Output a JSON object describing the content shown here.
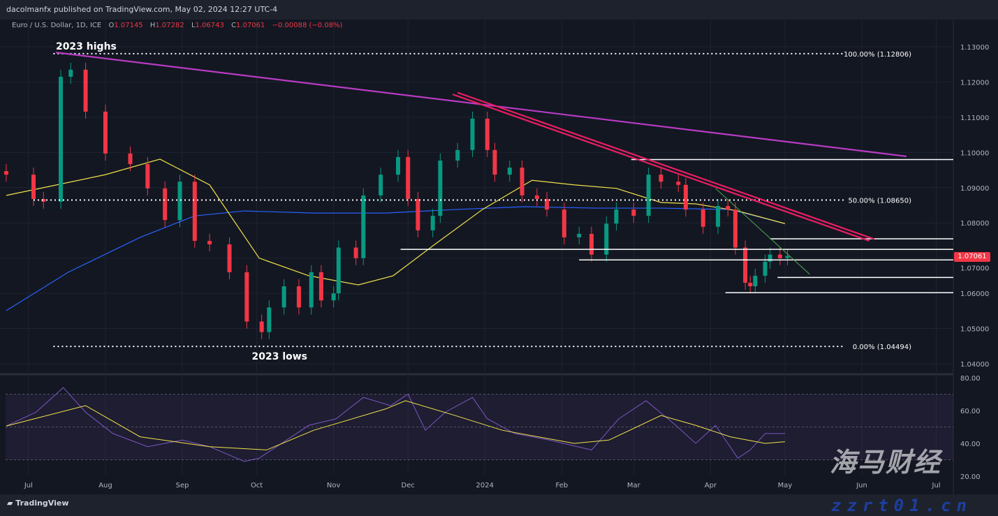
{
  "header": {
    "published": "dacolmanfx published on TradingView.com, May 02, 2024 12:27 UTC-4"
  },
  "legend": {
    "symbol": "Euro / U.S. Dollar, 1D, ICE",
    "o_label": "O",
    "o": "1.07145",
    "h_label": "H",
    "h": "1.07282",
    "l_label": "L",
    "l": "1.06743",
    "c_label": "C",
    "c": "1.07061",
    "change": "−0.00088 (−0.08%)"
  },
  "last_price": "1.07061",
  "footer": {
    "logo": "TradingView"
  },
  "watermark": {
    "line1": "海马财经",
    "line2": "zzrt01.cn"
  },
  "colors": {
    "up": "#089981",
    "down": "#f23645",
    "ma50": "#f2e24a",
    "ma200": "#2962ff",
    "long_trend": "#b93bc5",
    "pink_channel": "#e91e63",
    "green_trend": "#4caf50",
    "rsi": "#7e57c2",
    "rsi_ma": "#f2e24a"
  },
  "chart_data": [
    {
      "type": "candlestick",
      "title": "Euro / U.S. Dollar, 1D, ICE",
      "ylim": [
        1.038,
        1.134
      ],
      "y_ticks": [
        "1.13000",
        "1.12000",
        "1.11000",
        "1.10000",
        "1.09000",
        "1.08000",
        "1.07000",
        "1.06000",
        "1.05000",
        "1.04000"
      ],
      "x_ticks": [
        [
          "2023-07-01",
          "Jul"
        ],
        [
          "2023-08-01",
          "Aug"
        ],
        [
          "2023-09-01",
          "Sep"
        ],
        [
          "2023-10-01",
          "Oct"
        ],
        [
          "2023-11-01",
          "Nov"
        ],
        [
          "2023-12-01",
          "Dec"
        ],
        [
          "2024-01-01",
          "2024"
        ],
        [
          "2024-02-01",
          "Feb"
        ],
        [
          "2024-03-01",
          "Mar"
        ],
        [
          "2024-04-01",
          "Apr"
        ],
        [
          "2024-05-01",
          "May"
        ],
        [
          "2024-06-01",
          "Jun"
        ],
        [
          "2024-07-01",
          "Jul"
        ]
      ],
      "closes": [
        [
          "2023-06-22",
          1.0937
        ],
        [
          "2023-07-03",
          1.0868
        ],
        [
          "2023-07-07",
          1.086
        ],
        [
          "2023-07-14",
          1.1215
        ],
        [
          "2023-07-18",
          1.1235
        ],
        [
          "2023-07-24",
          1.1116
        ],
        [
          "2023-08-01",
          1.0997
        ],
        [
          "2023-08-11",
          1.0967
        ],
        [
          "2023-08-18",
          1.0898
        ],
        [
          "2023-08-25",
          1.0808
        ],
        [
          "2023-08-31",
          1.0917
        ],
        [
          "2023-09-06",
          1.0749
        ],
        [
          "2023-09-12",
          1.0739
        ],
        [
          "2023-09-20",
          1.066
        ],
        [
          "2023-09-27",
          1.052
        ],
        [
          "2023-10-03",
          1.049
        ],
        [
          "2023-10-06",
          1.056
        ],
        [
          "2023-10-12",
          1.062
        ],
        [
          "2023-10-18",
          1.056
        ],
        [
          "2023-10-23",
          1.066
        ],
        [
          "2023-10-27",
          1.058
        ],
        [
          "2023-11-01",
          1.06
        ],
        [
          "2023-11-03",
          1.073
        ],
        [
          "2023-11-10",
          1.07
        ],
        [
          "2023-11-13",
          1.0878
        ],
        [
          "2023-11-20",
          1.0937
        ],
        [
          "2023-11-27",
          1.0987
        ],
        [
          "2023-12-01",
          1.0868
        ],
        [
          "2023-12-05",
          1.0779
        ],
        [
          "2023-12-11",
          1.082
        ],
        [
          "2023-12-14",
          1.0977
        ],
        [
          "2023-12-21",
          1.1007
        ],
        [
          "2023-12-27",
          1.1096
        ],
        [
          "2024-01-02",
          1.1007
        ],
        [
          "2024-01-05",
          1.0937
        ],
        [
          "2024-01-11",
          1.0957
        ],
        [
          "2024-01-16",
          1.0878
        ],
        [
          "2024-01-22",
          1.0868
        ],
        [
          "2024-01-26",
          1.0838
        ],
        [
          "2024-02-02",
          1.0759
        ],
        [
          "2024-02-08",
          1.0769
        ],
        [
          "2024-02-13",
          1.071
        ],
        [
          "2024-02-19",
          1.0798
        ],
        [
          "2024-02-23",
          1.0838
        ],
        [
          "2024-03-01",
          1.082
        ],
        [
          "2024-03-07",
          1.0937
        ],
        [
          "2024-03-12",
          1.0917
        ],
        [
          "2024-03-19",
          1.0908
        ],
        [
          "2024-03-22",
          1.0838
        ],
        [
          "2024-03-29",
          1.0789
        ],
        [
          "2024-04-04",
          1.0848
        ],
        [
          "2024-04-08",
          1.0838
        ],
        [
          "2024-04-11",
          1.073
        ],
        [
          "2024-04-15",
          1.063
        ],
        [
          "2024-04-17",
          1.062
        ],
        [
          "2024-04-19",
          1.065
        ],
        [
          "2024-04-23",
          1.069
        ],
        [
          "2024-04-25",
          1.071
        ],
        [
          "2024-04-29",
          1.07
        ],
        [
          "2024-05-02",
          1.07061
        ]
      ],
      "ma50": [
        [
          "2023-06-22",
          1.0878
        ],
        [
          "2023-08-01",
          1.0937
        ],
        [
          "2023-08-23",
          1.0981
        ],
        [
          "2023-09-12",
          1.0908
        ],
        [
          "2023-10-02",
          1.07
        ],
        [
          "2023-10-22",
          1.065
        ],
        [
          "2023-11-11",
          1.0624
        ],
        [
          "2023-11-25",
          1.065
        ],
        [
          "2023-12-12",
          1.074
        ],
        [
          "2023-12-31",
          1.0838
        ],
        [
          "2024-01-20",
          1.0921
        ],
        [
          "2024-02-06",
          1.0908
        ],
        [
          "2024-02-23",
          1.0898
        ],
        [
          "2024-03-12",
          1.0858
        ],
        [
          "2024-03-26",
          1.0854
        ],
        [
          "2024-04-12",
          1.0834
        ],
        [
          "2024-05-01",
          1.0798
        ]
      ],
      "ma200": [
        [
          "2023-06-22",
          1.0551
        ],
        [
          "2023-07-17",
          1.066
        ],
        [
          "2023-08-15",
          1.0759
        ],
        [
          "2023-09-06",
          1.082
        ],
        [
          "2023-09-26",
          1.0834
        ],
        [
          "2023-10-24",
          1.0828
        ],
        [
          "2023-11-22",
          1.0828
        ],
        [
          "2023-12-20",
          1.0838
        ],
        [
          "2024-01-17",
          1.0846
        ],
        [
          "2024-02-15",
          1.0842
        ],
        [
          "2024-03-12",
          1.0842
        ],
        [
          "2024-04-09",
          1.0838
        ],
        [
          "2024-05-01",
          1.0798
        ]
      ],
      "fib_levels": [
        {
          "label": "100.00% (1.12806)",
          "price": 1.12806,
          "from": "2023-07-11"
        },
        {
          "label": "50.00% (1.08650)",
          "price": 1.0865,
          "from": "2023-07-03"
        },
        {
          "label": "0.00% (1.04494)",
          "price": 1.04494,
          "from": "2023-07-11"
        }
      ],
      "horizontal_levels": [
        {
          "price": 1.098,
          "from": "2024-02-29"
        },
        {
          "price": 1.0755,
          "from": "2024-04-25"
        },
        {
          "price": 1.0725,
          "from": "2023-11-28"
        },
        {
          "price": 1.0695,
          "from": "2024-02-08"
        },
        {
          "price": 1.0645,
          "from": "2024-04-28"
        },
        {
          "price": 1.0602,
          "from": "2024-04-07"
        }
      ],
      "trendlines": [
        {
          "kind": "long_trend",
          "from": [
            "2023-07-12",
            1.1284
          ],
          "to": [
            "2024-06-19",
            1.0989
          ]
        },
        {
          "kind": "pink_channel",
          "from": [
            "2023-12-19",
            1.1165
          ],
          "to": [
            "2024-06-04",
            1.0749
          ]
        },
        {
          "kind": "pink_channel",
          "from": [
            "2023-12-21",
            1.117
          ],
          "to": [
            "2024-06-06",
            1.0754
          ]
        },
        {
          "kind": "green_trend",
          "from": [
            "2024-04-03",
            1.0898
          ],
          "to": [
            "2024-05-11",
            1.0654
          ]
        }
      ],
      "annotations": [
        {
          "text": "2023 highs",
          "date": "2023-07-12",
          "price": 1.13
        },
        {
          "text": "2023 lows",
          "date": "2023-09-29",
          "price": 1.042
        }
      ]
    },
    {
      "type": "line",
      "title": "RSI",
      "ylim": [
        16,
        82
      ],
      "y_ticks": [
        "80.00",
        "60.00",
        "40.00",
        "20.00"
      ],
      "bands": [
        70,
        50,
        30
      ],
      "rsi": [
        [
          "2023-06-22",
          50.6
        ],
        [
          "2023-07-04",
          59
        ],
        [
          "2023-07-15",
          74
        ],
        [
          "2023-07-24",
          59
        ],
        [
          "2023-08-04",
          46
        ],
        [
          "2023-08-18",
          38
        ],
        [
          "2023-09-01",
          42
        ],
        [
          "2023-09-12",
          38
        ],
        [
          "2023-09-26",
          29
        ],
        [
          "2023-10-02",
          31
        ],
        [
          "2023-10-13",
          42
        ],
        [
          "2023-10-22",
          51
        ],
        [
          "2023-11-02",
          55
        ],
        [
          "2023-11-13",
          68
        ],
        [
          "2023-11-24",
          63
        ],
        [
          "2023-12-01",
          70
        ],
        [
          "2023-12-08",
          48
        ],
        [
          "2023-12-16",
          59
        ],
        [
          "2023-12-27",
          68
        ],
        [
          "2024-01-02",
          55
        ],
        [
          "2024-01-13",
          46
        ],
        [
          "2024-01-27",
          42
        ],
        [
          "2024-02-13",
          36
        ],
        [
          "2024-02-24",
          55
        ],
        [
          "2024-03-06",
          66
        ],
        [
          "2024-03-18",
          51
        ],
        [
          "2024-03-26",
          40
        ],
        [
          "2024-04-03",
          51
        ],
        [
          "2024-04-12",
          31
        ],
        [
          "2024-04-17",
          36
        ],
        [
          "2024-04-23",
          46
        ],
        [
          "2024-05-01",
          46
        ]
      ],
      "rsi_ma": [
        [
          "2023-06-22",
          50.6
        ],
        [
          "2023-07-24",
          63
        ],
        [
          "2023-08-15",
          44
        ],
        [
          "2023-09-12",
          38
        ],
        [
          "2023-10-05",
          36
        ],
        [
          "2023-10-24",
          48
        ],
        [
          "2023-11-22",
          61
        ],
        [
          "2023-11-30",
          66
        ],
        [
          "2023-12-20",
          57
        ],
        [
          "2024-01-08",
          48
        ],
        [
          "2024-02-06",
          40
        ],
        [
          "2024-02-20",
          42
        ],
        [
          "2024-03-12",
          57
        ],
        [
          "2024-03-26",
          51
        ],
        [
          "2024-04-09",
          44
        ],
        [
          "2024-04-23",
          40
        ],
        [
          "2024-05-01",
          41
        ]
      ]
    }
  ]
}
